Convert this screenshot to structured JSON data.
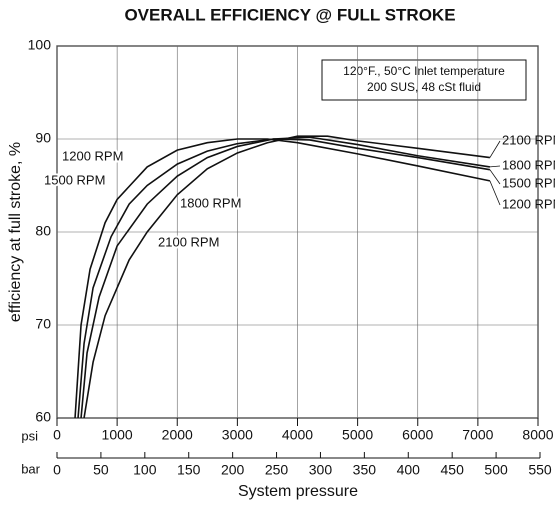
{
  "chart_data": {
    "type": "line",
    "title": "OVERALL EFFICIENCY @ FULL STROKE",
    "annotation_lines": [
      "120°F., 50°C Inlet temperature",
      "200 SUS, 48 cSt fluid"
    ],
    "y_label": "efficiency at full stroke, %",
    "x_label": "System pressure",
    "x_unit": "psi",
    "x2_unit": "bar",
    "xlim": [
      0,
      8000
    ],
    "xticks": [
      0,
      1000,
      2000,
      3000,
      4000,
      5000,
      6000,
      7000,
      8000
    ],
    "x2lim": [
      0,
      550
    ],
    "x2ticks": [
      0,
      50,
      100,
      150,
      200,
      250,
      300,
      350,
      400,
      450,
      500,
      550
    ],
    "ylim": [
      60,
      100
    ],
    "yticks": [
      60,
      70,
      80,
      90,
      100
    ],
    "grid": true,
    "series": [
      {
        "name": "1200 RPM",
        "color": "#111111",
        "x": [
          300,
          400,
          550,
          800,
          1000,
          1500,
          2000,
          2500,
          3000,
          3500,
          4000,
          5000,
          6000,
          7200
        ],
        "values": [
          60,
          70,
          76,
          81,
          83.5,
          87,
          88.8,
          89.6,
          90,
          90,
          89.6,
          88.4,
          87.1,
          85.5
        ]
      },
      {
        "name": "1500 RPM",
        "color": "#111111",
        "x": [
          350,
          450,
          600,
          900,
          1200,
          1500,
          2000,
          2500,
          3000,
          3600,
          4200,
          5000,
          6000,
          7200
        ],
        "values": [
          60,
          68,
          74,
          79.5,
          83,
          85,
          87.3,
          88.7,
          89.5,
          90,
          89.9,
          89,
          88,
          86.7
        ]
      },
      {
        "name": "1800 RPM",
        "color": "#111111",
        "x": [
          400,
          500,
          700,
          1000,
          1500,
          2000,
          2500,
          3000,
          3600,
          4200,
          5000,
          6000,
          7200
        ],
        "values": [
          60,
          67,
          73,
          78.5,
          83,
          86,
          88,
          89.2,
          90,
          90.2,
          89.4,
          88.2,
          87
        ]
      },
      {
        "name": "2100 RPM",
        "color": "#111111",
        "x": [
          450,
          600,
          800,
          1200,
          1500,
          2000,
          2500,
          3000,
          3500,
          4000,
          4500,
          5000,
          6000,
          7200
        ],
        "values": [
          60,
          66,
          71,
          77,
          80,
          84,
          86.8,
          88.5,
          89.6,
          90.3,
          90.3,
          89.8,
          89,
          88
        ]
      }
    ]
  }
}
